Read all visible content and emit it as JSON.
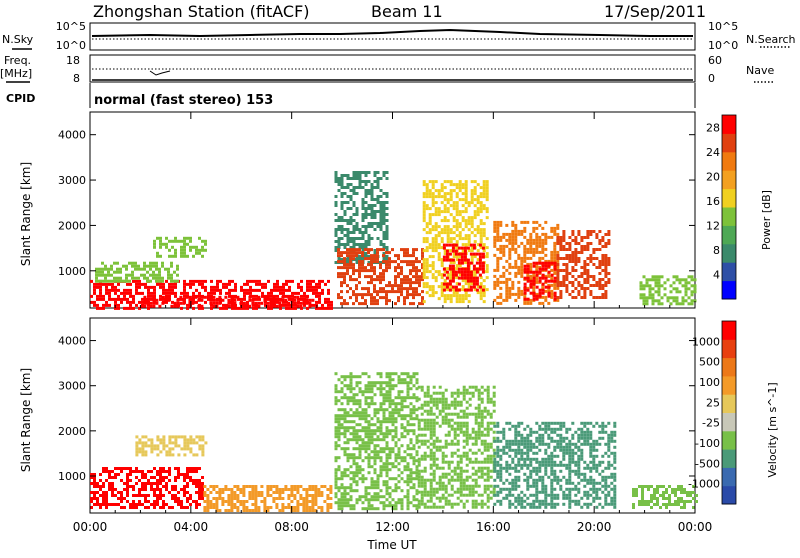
{
  "header": {
    "station": "Zhongshan Station (fitACF)",
    "beam": "Beam 11",
    "date": "17/Sep/2011"
  },
  "summary_panels": {
    "nsky_label": "N.Sky",
    "nsky_ticks": [
      "10^5",
      "10^0"
    ],
    "nsearch_label": "N.Search",
    "nsearch_ticks": [
      "10^5",
      "10^0"
    ],
    "freq_label_1": "Freq.",
    "freq_label_2": "[MHz]",
    "freq_ticks": [
      "18",
      "8"
    ],
    "nave_label": "Nave",
    "nave_ticks": [
      "60",
      "0"
    ],
    "cpid_label": "CPID",
    "cpid_text": "normal (fast stereo) 153"
  },
  "colors": {
    "power": [
      "#0000ff",
      "#2e4fa6",
      "#3b8a6b",
      "#4ea855",
      "#7dc23a",
      "#f0d020",
      "#f3a020",
      "#f07a10",
      "#e04010",
      "#ff0000"
    ],
    "velocity": [
      "#2a4aa8",
      "#3a6ab0",
      "#4a9a78",
      "#78c048",
      "#c8c8b8",
      "#e6c85a",
      "#f39a28",
      "#ec7818",
      "#e84010",
      "#ff0000"
    ]
  },
  "chart_data": [
    {
      "type": "heatmap",
      "title": "Power",
      "xlabel": "",
      "ylabel": "Slant Range [km]",
      "xlim": [
        "00:00",
        "24:00"
      ],
      "ylim": [
        180,
        4500
      ],
      "x_ticks": [
        "00:00",
        "04:00",
        "08:00",
        "12:00",
        "16:00",
        "20:00",
        "00:00"
      ],
      "y_ticks": [
        "1000",
        "2000",
        "3000",
        "4000"
      ],
      "colorbar": {
        "label": "Power [dB]",
        "ticks": [
          "4",
          "8",
          "12",
          "16",
          "20",
          "24",
          "28"
        ],
        "range": [
          0,
          30
        ]
      },
      "regions": [
        {
          "t": [
            0.0,
            9.6
          ],
          "r": [
            200,
            800
          ],
          "level": 28
        },
        {
          "t": [
            2.0,
            8.8
          ],
          "r": [
            200,
            450
          ],
          "level": 30
        },
        {
          "t": [
            0.2,
            3.5
          ],
          "r": [
            800,
            1200
          ],
          "level": 14
        },
        {
          "t": [
            2.5,
            4.6
          ],
          "r": [
            1350,
            1750
          ],
          "level": 12
        },
        {
          "t": [
            9.7,
            11.8
          ],
          "r": [
            1200,
            3200
          ],
          "level": 6
        },
        {
          "t": [
            9.8,
            13.2
          ],
          "r": [
            300,
            1500
          ],
          "level": 24
        },
        {
          "t": [
            13.2,
            15.8
          ],
          "r": [
            300,
            3000
          ],
          "level": 16
        },
        {
          "t": [
            14.0,
            15.6
          ],
          "r": [
            600,
            1600
          ],
          "level": 28
        },
        {
          "t": [
            16.0,
            18.6
          ],
          "r": [
            300,
            2100
          ],
          "level": 22
        },
        {
          "t": [
            17.2,
            18.4
          ],
          "r": [
            400,
            1200
          ],
          "level": 30
        },
        {
          "t": [
            18.5,
            20.6
          ],
          "r": [
            400,
            1900
          ],
          "level": 26
        },
        {
          "t": [
            21.8,
            24.0
          ],
          "r": [
            300,
            900
          ],
          "level": 14
        }
      ]
    },
    {
      "type": "heatmap",
      "title": "Velocity",
      "xlabel": "Time UT",
      "ylabel": "Slant Range [km]",
      "xlim": [
        "00:00",
        "24:00"
      ],
      "ylim": [
        180,
        4500
      ],
      "x_ticks": [
        "00:00",
        "04:00",
        "08:00",
        "12:00",
        "16:00",
        "20:00",
        "00:00"
      ],
      "y_ticks": [
        "1000",
        "2000",
        "3000",
        "4000"
      ],
      "colorbar": {
        "label": "Velocity [m s^-1]",
        "ticks": [
          "1000",
          "500",
          "100",
          "25",
          "-25",
          "-100",
          "-500",
          "-1000"
        ],
        "range": [
          -1000,
          1000
        ]
      },
      "regions": [
        {
          "t": [
            0.0,
            4.5
          ],
          "r": [
            300,
            1200
          ],
          "level": 800
        },
        {
          "t": [
            4.5,
            9.6
          ],
          "r": [
            250,
            800
          ],
          "level": 200
        },
        {
          "t": [
            1.8,
            4.6
          ],
          "r": [
            1500,
            1900
          ],
          "level": 0
        },
        {
          "t": [
            9.7,
            13.0
          ],
          "r": [
            300,
            3300
          ],
          "level": -400
        },
        {
          "t": [
            13.0,
            16.0
          ],
          "r": [
            300,
            3000
          ],
          "level": -300
        },
        {
          "t": [
            16.0,
            20.8
          ],
          "r": [
            300,
            2200
          ],
          "level": -500
        },
        {
          "t": [
            21.5,
            24.0
          ],
          "r": [
            300,
            800
          ],
          "level": -300
        }
      ]
    }
  ]
}
